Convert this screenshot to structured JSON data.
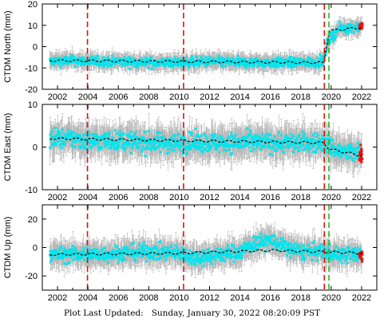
{
  "footer": {
    "text": "Plot Last Updated:   Sunday, January 30, 2022 08:20:09 PST"
  },
  "colors": {
    "data_points": "#00e5ee",
    "error_bars": "#b4b4b4",
    "model_fit": "#000000",
    "event_lines": "#dd1111",
    "equipment_line": "#22bb22",
    "recent_points": "#ee1111"
  },
  "chart_data": [
    {
      "type": "scatter",
      "title": "",
      "ylabel": "CTDM North (mm)",
      "xlabel": "",
      "xlim": [
        2001,
        2023
      ],
      "ylim": [
        -20,
        20
      ],
      "x_ticks": [
        2002,
        2004,
        2006,
        2008,
        2010,
        2012,
        2014,
        2016,
        2018,
        2020,
        2022
      ],
      "y_ticks": [
        -20,
        -10,
        0,
        10,
        20
      ],
      "grid": false,
      "event_lines": [
        2003.97,
        2010.29,
        2019.55
      ],
      "equipment_lines": [
        2019.85
      ],
      "series": [
        {
          "role": "daily-positions",
          "x": [
            2001.5,
            2003.0,
            2004.0,
            2006.0,
            2008.0,
            2010.0,
            2012.0,
            2014.0,
            2016.0,
            2018.0,
            2019.5,
            2019.75,
            2020.5,
            2021.5,
            2022.0
          ],
          "y": [
            -7,
            -6.5,
            -7,
            -7,
            -7.5,
            -7.5,
            -7,
            -7.5,
            -7.5,
            -7.5,
            -7,
            2,
            8.5,
            9,
            9.5
          ],
          "spread": 2.5
        },
        {
          "role": "model-fit",
          "x": [
            2001.5,
            2019.5,
            2019.9,
            2022.0
          ],
          "y": [
            -6.5,
            -7.5,
            7.5,
            9
          ]
        }
      ]
    },
    {
      "type": "scatter",
      "title": "",
      "ylabel": "CTDM East (mm)",
      "xlabel": "",
      "xlim": [
        2001,
        2023
      ],
      "ylim": [
        -10,
        10
      ],
      "x_ticks": [
        2002,
        2004,
        2006,
        2008,
        2010,
        2012,
        2014,
        2016,
        2018,
        2020,
        2022
      ],
      "y_ticks": [
        -10,
        0,
        10
      ],
      "grid": false,
      "event_lines": [
        2003.97,
        2010.29,
        2019.55
      ],
      "equipment_lines": [
        2019.85
      ],
      "series": [
        {
          "role": "daily-positions",
          "x": [
            2001.5,
            2003.0,
            2004.0,
            2006.0,
            2008.0,
            2010.0,
            2012.0,
            2014.0,
            2016.0,
            2018.0,
            2019.5,
            2020.5,
            2021.5,
            2022.0
          ],
          "y": [
            2,
            2,
            1.5,
            1.5,
            1,
            1,
            1,
            1,
            1,
            1,
            1,
            -1,
            -1.5,
            -1.5
          ],
          "spread": 2.5
        },
        {
          "role": "model-fit",
          "x": [
            2001.5,
            2019.5,
            2019.9,
            2022.0
          ],
          "y": [
            2,
            1,
            -0.5,
            -2
          ]
        }
      ]
    },
    {
      "type": "scatter",
      "title": "",
      "ylabel": "CTDM Up (mm)",
      "xlabel": "",
      "xlim": [
        2001,
        2023
      ],
      "ylim": [
        -30,
        30
      ],
      "x_ticks": [
        2002,
        2004,
        2006,
        2008,
        2010,
        2012,
        2014,
        2016,
        2018,
        2020,
        2022
      ],
      "y_ticks": [
        -20,
        0,
        20
      ],
      "grid": false,
      "event_lines": [
        2003.97,
        2010.29,
        2019.55
      ],
      "equipment_lines": [
        2019.85
      ],
      "series": [
        {
          "role": "daily-positions",
          "x": [
            2001.5,
            2004.0,
            2006.0,
            2008.0,
            2010.0,
            2011.0,
            2012.0,
            2014.0,
            2015.0,
            2016.0,
            2017.0,
            2018.0,
            2019.5,
            2020.5,
            2021.5,
            2022.0
          ],
          "y": [
            -5,
            -5,
            -4,
            -3,
            -4,
            -7,
            -6,
            -3,
            3,
            5,
            0,
            -3,
            -3,
            -5,
            -5,
            -5
          ],
          "spread": 6
        },
        {
          "role": "model-fit",
          "x": [
            2001.5,
            2010.0,
            2016.0,
            2019.5,
            2022.0
          ],
          "y": [
            -5,
            -4,
            -2,
            -3,
            -4
          ]
        }
      ]
    }
  ]
}
